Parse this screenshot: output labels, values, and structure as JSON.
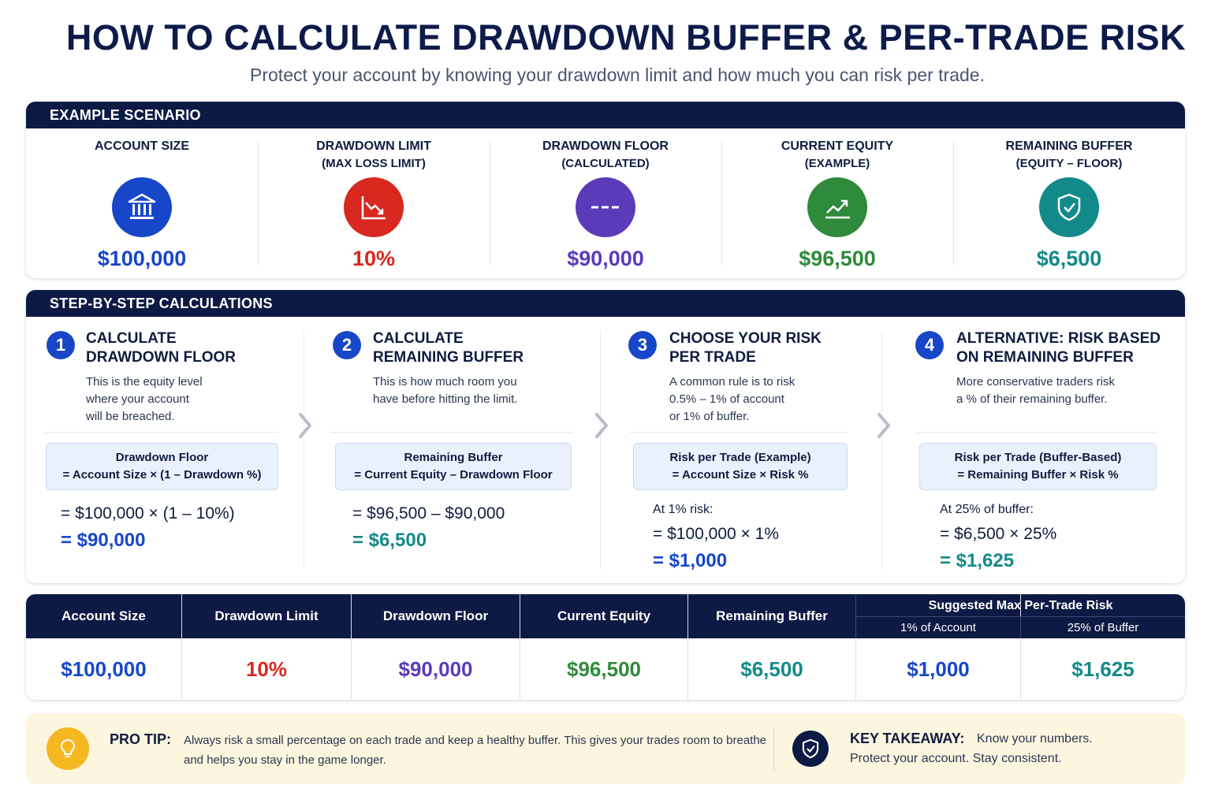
{
  "header": {
    "title": "HOW TO CALCULATE DRAWDOWN BUFFER & PER-TRADE RISK",
    "subtitle": "Protect your account by knowing your drawdown limit and how much you can risk per trade."
  },
  "colors": {
    "navy": "#0c1a44",
    "blue": "#1747c8",
    "red": "#d8281f",
    "purple": "#5b3bb8",
    "green": "#2f8a3b",
    "teal": "#138a8a",
    "yellow": "#f5b820"
  },
  "scenario": {
    "heading": "EXAMPLE SCENARIO",
    "items": [
      {
        "label": "ACCOUNT SIZE",
        "sub": "",
        "value": "$100,000",
        "icon": "bank-icon",
        "color": "#1747c8"
      },
      {
        "label": "DRAWDOWN LIMIT",
        "sub": "(MAX LOSS LIMIT)",
        "value": "10%",
        "icon": "chart-down-icon",
        "color": "#d8281f"
      },
      {
        "label": "DRAWDOWN FLOOR",
        "sub": "(CALCULATED)",
        "value": "$90,000",
        "icon": "dashed-line-icon",
        "color": "#5b3bb8"
      },
      {
        "label": "CURRENT EQUITY",
        "sub": "(EXAMPLE)",
        "value": "$96,500",
        "icon": "trend-up-icon",
        "color": "#2f8a3b"
      },
      {
        "label": "REMAINING BUFFER",
        "sub": "(EQUITY – FLOOR)",
        "value": "$6,500",
        "icon": "shield-check-icon",
        "color": "#138a8a"
      }
    ]
  },
  "steps": {
    "heading": "STEP-BY-STEP CALCULATIONS",
    "items": [
      {
        "num": "1",
        "title1": "CALCULATE",
        "title2": "DRAWDOWN FLOOR",
        "desc": [
          "This is the equity level",
          "where your account",
          "will be breached."
        ],
        "formula1": "Drawdown Floor",
        "formula2": "= Account Size × (1 – Drawdown %)",
        "note": "",
        "calc": "= $100,000 × (1 – 10%)",
        "result": "= $90,000"
      },
      {
        "num": "2",
        "title1": "CALCULATE",
        "title2": "REMAINING BUFFER",
        "desc": [
          "This is how much room you",
          "have before hitting the limit."
        ],
        "formula1": "Remaining Buffer",
        "formula2": "= Current Equity – Drawdown Floor",
        "note": "",
        "calc": "= $96,500 – $90,000",
        "result": "= $6,500"
      },
      {
        "num": "3",
        "title1": "CHOOSE YOUR RISK",
        "title2": "PER TRADE",
        "desc": [
          "A common rule is to risk",
          "0.5% – 1% of account",
          "or 1% of buffer."
        ],
        "formula1": "Risk per Trade (Example)",
        "formula2": "= Account Size × Risk %",
        "note": "At 1% risk:",
        "calc": "= $100,000 × 1%",
        "result": "= $1,000"
      },
      {
        "num": "4",
        "title1": "ALTERNATIVE: RISK BASED",
        "title2": "ON REMAINING BUFFER",
        "desc": [
          "More conservative traders risk",
          "a % of their remaining buffer."
        ],
        "formula1": "Risk per Trade (Buffer-Based)",
        "formula2": "= Remaining Buffer × Risk %",
        "note": "At 25% of buffer:",
        "calc": "= $6,500 × 25%",
        "result": "= $1,625"
      }
    ]
  },
  "summary": {
    "columns": [
      {
        "header": "Account Size",
        "value": "$100,000",
        "color": "#1747c8"
      },
      {
        "header": "Drawdown Limit",
        "value": "10%",
        "color": "#d8281f"
      },
      {
        "header": "Drawdown Floor",
        "value": "$90,000",
        "color": "#5b3bb8"
      },
      {
        "header": "Current Equity",
        "value": "$96,500",
        "color": "#2f8a3b"
      },
      {
        "header": "Remaining Buffer",
        "value": "$6,500",
        "color": "#138a8a"
      }
    ],
    "suggested_header": "Suggested Max Per-Trade Risk",
    "suggested": [
      {
        "header": "1% of Account",
        "value": "$1,000",
        "color": "#1747c8"
      },
      {
        "header": "25% of Buffer",
        "value": "$1,625",
        "color": "#138a8a"
      }
    ]
  },
  "tip": {
    "label": "PRO TIP:",
    "text1": "Always risk a small percentage on each trade and keep a healthy buffer. This gives your trades room to breathe",
    "text2": "and helps you stay in the game longer.",
    "key_label": "KEY TAKEAWAY:",
    "key_text1": "Know your numbers.",
    "key_text2": "Protect your account. Stay consistent."
  }
}
